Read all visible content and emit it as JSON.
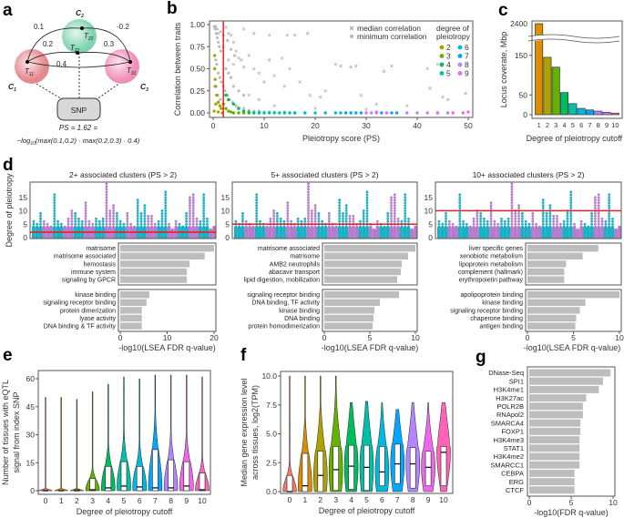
{
  "panels": {
    "a": "a",
    "b": "b",
    "c": "c",
    "d": "d",
    "e": "e",
    "f": "f",
    "g": "g"
  },
  "diagram_a": {
    "clusters": [
      {
        "label": "C",
        "sub": "1",
        "color": "#e48a8f"
      },
      {
        "label": "C",
        "sub": "2",
        "color": "#7fd3b0"
      },
      {
        "label": "C",
        "sub": "3",
        "color": "#f08fb8"
      }
    ],
    "traits": [
      {
        "label": "T",
        "sub": "11"
      },
      {
        "label": "T",
        "sub": "21"
      },
      {
        "label": "T",
        "sub": "22"
      },
      {
        "label": "T",
        "sub": "31"
      }
    ],
    "correlations": [
      "0.1",
      "-0.2",
      "0.2",
      "0.3",
      "0.4"
    ],
    "snp_label": "SNP",
    "ps_line1": "PS = 1.62 =",
    "ps_line2_prefix": "−log",
    "ps_line2_sub": "10",
    "ps_line2_rest": "(max(0.1,0.2) · max(0.2,0.3) · 0.4)"
  },
  "chart_data": [
    {
      "id": "b",
      "type": "scatter",
      "xlabel": "Pleiotropy score (PS)",
      "ylabel": "Correlation between traits",
      "xlim": [
        0,
        50
      ],
      "ylim": [
        0,
        1
      ],
      "xticks": [
        0,
        10,
        20,
        30,
        40,
        50
      ],
      "yticks": [
        "0.00",
        "0.25",
        "0.50",
        "0.75",
        "1.00"
      ],
      "threshold_x": 2,
      "threshold_color": "#e8202a",
      "legend": {
        "placement": "top-right",
        "median_label": "median correlation",
        "minimum_label": "minimum correlation",
        "degree_title_1": "degree of",
        "degree_title_2": "pleiotropy"
      },
      "median_points": [
        [
          0.5,
          0.98
        ],
        [
          0.8,
          0.95
        ],
        [
          1,
          0.9
        ],
        [
          1.5,
          0.92
        ],
        [
          2.5,
          0.97
        ],
        [
          3,
          0.9
        ],
        [
          3.5,
          0.88
        ],
        [
          4,
          0.8
        ],
        [
          4.5,
          0.7
        ],
        [
          5,
          0.62
        ],
        [
          5.5,
          0.6
        ],
        [
          6,
          0.52
        ],
        [
          7,
          0.65
        ],
        [
          8,
          0.5
        ],
        [
          9,
          0.45
        ],
        [
          10,
          0.35
        ],
        [
          11,
          0.6
        ],
        [
          12,
          0.42
        ],
        [
          13.5,
          0.62
        ],
        [
          14,
          0.3
        ],
        [
          15,
          0.5
        ],
        [
          16,
          0.88
        ],
        [
          17,
          0.35
        ],
        [
          18.5,
          0.9
        ],
        [
          19,
          0.2
        ],
        [
          21,
          0.18
        ],
        [
          22,
          0.25
        ],
        [
          24,
          0.55
        ],
        [
          25,
          0.53
        ],
        [
          27,
          0.52
        ],
        [
          28,
          0.53
        ],
        [
          29,
          0.2
        ],
        [
          32,
          0.1
        ],
        [
          33.5,
          0.47
        ],
        [
          35,
          0.53
        ],
        [
          38,
          0.08
        ],
        [
          42,
          0.5
        ],
        [
          42.5,
          0.28
        ],
        [
          44,
          0.55
        ],
        [
          45,
          0.18
        ],
        [
          46,
          0.15
        ],
        [
          49.5,
          0.22
        ],
        [
          14.5,
          0.88
        ],
        [
          11,
          0.88
        ],
        [
          8,
          0.9
        ],
        [
          6,
          0.95
        ],
        [
          3,
          0.6
        ],
        [
          2,
          0.75
        ],
        [
          4,
          0.55
        ],
        [
          7,
          0.2
        ],
        [
          9,
          0.15
        ],
        [
          12,
          0.08
        ],
        [
          20,
          0.05
        ],
        [
          30,
          0.04
        ]
      ],
      "minimum_points": [
        [
          0.2,
          0.98
        ],
        [
          0.4,
          0.95
        ],
        [
          0.6,
          0.9
        ],
        [
          0.8,
          0.85
        ],
        [
          1,
          0.8
        ],
        [
          1.2,
          0.75
        ],
        [
          1.5,
          0.7
        ],
        [
          0.5,
          0.6
        ],
        [
          0.7,
          0.55
        ],
        [
          1,
          0.45
        ],
        [
          1.3,
          0.4
        ],
        [
          1.6,
          0.35
        ],
        [
          2,
          0.3
        ],
        [
          2.3,
          0.25
        ],
        [
          2.8,
          0.2
        ],
        [
          3.2,
          0.15
        ],
        [
          3.8,
          0.12
        ],
        [
          4.5,
          0.08
        ],
        [
          5,
          0.06
        ],
        [
          6,
          0.05
        ],
        [
          7,
          0.03
        ],
        [
          8,
          0.02
        ],
        [
          9,
          0.02
        ],
        [
          10,
          0.01
        ],
        [
          11,
          0.01
        ],
        [
          12,
          0.01
        ],
        [
          14,
          0.01
        ],
        [
          16,
          0
        ],
        [
          18,
          0
        ],
        [
          20,
          0
        ],
        [
          0.3,
          0.3
        ],
        [
          0.9,
          0.2
        ],
        [
          1.4,
          0.15
        ],
        [
          2.5,
          0.5
        ],
        [
          3,
          0.45
        ],
        [
          3.5,
          0.4
        ],
        [
          4,
          0.3
        ],
        [
          5,
          0.25
        ],
        [
          6,
          0.2
        ],
        [
          2,
          0.88
        ],
        [
          2.8,
          0.82
        ],
        [
          3.5,
          0.72
        ],
        [
          4.2,
          0.65
        ]
      ],
      "series": [
        {
          "name": "2",
          "color": "#aea200",
          "points": [
            [
              0.3,
              0.65
            ],
            [
              0.3,
              0.5
            ],
            [
              0.4,
              0.38
            ],
            [
              0.5,
              0.3
            ],
            [
              0.7,
              0.2
            ],
            [
              1,
              0.12
            ],
            [
              1.3,
              0.08
            ],
            [
              1.6,
              0.05
            ],
            [
              0.5,
              0.1
            ],
            [
              0.2,
              0.02
            ],
            [
              1,
              0.01
            ],
            [
              1.8,
              0
            ]
          ]
        },
        {
          "name": "3",
          "color": "#64b200",
          "points": [
            [
              2,
              0.1
            ],
            [
              2.5,
              0.05
            ],
            [
              3,
              0.02
            ],
            [
              3.5,
              0.01
            ],
            [
              4,
              0
            ],
            [
              5,
              0
            ],
            [
              6,
              0
            ],
            [
              7,
              0.01
            ]
          ]
        },
        {
          "name": "4",
          "color": "#00bd5c",
          "points": [
            [
              2.5,
              0.2
            ],
            [
              3,
              0.15
            ],
            [
              4,
              0.1
            ],
            [
              5,
              0.05
            ],
            [
              6,
              0.02
            ],
            [
              7,
              0
            ],
            [
              8,
              0
            ],
            [
              9,
              0
            ]
          ]
        },
        {
          "name": "5",
          "color": "#00c1a7",
          "points": [
            [
              9,
              0
            ],
            [
              10,
              0
            ],
            [
              11,
              0
            ],
            [
              12,
              0
            ],
            [
              13,
              0
            ],
            [
              14,
              0
            ],
            [
              15,
              0
            ],
            [
              16,
              0
            ]
          ]
        },
        {
          "name": "6",
          "color": "#00bade",
          "points": [
            [
              16,
              0
            ],
            [
              18,
              0
            ],
            [
              20,
              0
            ],
            [
              22,
              0
            ],
            [
              24,
              0
            ],
            [
              25,
              0
            ]
          ]
        },
        {
          "name": "7",
          "color": "#00a6ff",
          "points": [
            [
              26,
              0
            ],
            [
              27,
              0
            ],
            [
              28,
              0
            ],
            [
              29,
              0
            ],
            [
              33,
              0
            ],
            [
              35,
              0
            ],
            [
              36,
              0
            ]
          ]
        },
        {
          "name": "8",
          "color": "#b385ff",
          "points": [
            [
              31,
              0
            ],
            [
              32,
              0
            ],
            [
              38,
              0
            ],
            [
              40,
              0
            ],
            [
              42,
              0
            ],
            [
              44,
              0
            ],
            [
              46,
              0
            ]
          ]
        },
        {
          "name": "9",
          "color": "#ef67eb",
          "points": [
            [
              30,
              0
            ],
            [
              32,
              0.01
            ],
            [
              34,
              0
            ],
            [
              44,
              0
            ],
            [
              47,
              0
            ],
            [
              49,
              0
            ],
            [
              50,
              0.01
            ]
          ]
        }
      ]
    },
    {
      "id": "c",
      "type": "bar",
      "xlabel": "Degree of pleiotropy cutoff",
      "ylabel": "Locus coverate, Mbp",
      "axis_break": true,
      "categories": [
        "1",
        "2",
        "3",
        "4",
        "5",
        "6",
        "7",
        "8",
        "9",
        "10"
      ],
      "values": [
        2400,
        145,
        120,
        56,
        28,
        16,
        12,
        9,
        6,
        4
      ],
      "yticks": [
        0,
        50,
        150
      ],
      "break_tick": 2400,
      "colors": [
        "#db8e00",
        "#aea200",
        "#64b200",
        "#00bd5c",
        "#00c1a7",
        "#00bade",
        "#00a6ff",
        "#b385ff",
        "#ef67eb",
        "#ff63b6"
      ]
    },
    {
      "id": "d",
      "type": "bar",
      "ylabel": "Degree of pleiotropy",
      "xlabel": "-log10(LSEA FDR q-value)",
      "yticks": [
        0,
        5,
        10,
        15
      ],
      "manhattan_columns": [
        6,
        5,
        9,
        6,
        5,
        4,
        16,
        6,
        5,
        4,
        7,
        10,
        9,
        7,
        6,
        13,
        6,
        5,
        7,
        6,
        7,
        20,
        10,
        12,
        9,
        6,
        5,
        9,
        5,
        4,
        14,
        9,
        12,
        8,
        8,
        5,
        6,
        10,
        17,
        5,
        3,
        6,
        5,
        4,
        9,
        15,
        16,
        7,
        6,
        16,
        7,
        3,
        4
      ],
      "manhattan_colors": [
        "#1aafc4",
        "#b57cc9"
      ],
      "subpanels": [
        {
          "title": "2+ associated clusters (PS > 2)",
          "cutoff": 2,
          "xlim": [
            0,
            20
          ],
          "xticks": [
            0,
            10,
            20
          ],
          "top_terms": [
            "matrisome",
            "matrisome associated",
            "hemostasis",
            "immune system",
            "signaling by GPCR"
          ],
          "top_values": [
            20,
            18,
            14.8,
            14.2,
            14.2
          ],
          "bottom_terms": [
            "kinase binding",
            "signaling receptor binding",
            "protein dimerization",
            "lyase activity",
            "DNA binding & TF activity"
          ],
          "bottom_values": [
            6.2,
            5.6,
            4.6,
            4.6,
            4.6
          ]
        },
        {
          "title": "5+ associated clusters (PS > 2)",
          "cutoff": 5,
          "xlim": [
            0,
            10
          ],
          "xticks": [
            0,
            5,
            10
          ],
          "top_terms": [
            "matrisome associated",
            "matrisome",
            "AMB2 neutrophils",
            "abacavir transport",
            "lipid digestion, mobilization"
          ],
          "top_values": [
            10,
            9.2,
            8.5,
            8.4,
            8.0
          ],
          "bottom_terms": [
            "signaling receptor binding",
            "DNA binding, TF activity",
            "kinase binding",
            "DNA binding",
            "protein homodimerization"
          ],
          "bottom_values": [
            8.2,
            6.1,
            5.5,
            5.4,
            5.3
          ]
        },
        {
          "title": "10+ associated clusters (PS > 2)",
          "cutoff": 10,
          "xlim": [
            0,
            10
          ],
          "xticks": [
            0,
            5,
            10
          ],
          "top_terms": [
            "liver specific genes",
            "xenobiotic metabolism",
            "lipoprotein metabolism",
            "complement (hallmark)",
            "erythropoietin pathway"
          ],
          "top_values": [
            7.7,
            6.0,
            4.2,
            4.0,
            4.0
          ],
          "bottom_terms": [
            "apolipoprotein binding",
            "kinase binding",
            "signaling receptor binding",
            "chaperone binding",
            "antigen binding"
          ],
          "bottom_values": [
            10,
            6.3,
            5.7,
            5.3,
            5.2
          ]
        }
      ]
    },
    {
      "id": "e",
      "type": "violin",
      "xlabel": "Degree of pleiotropy cutoff",
      "ylabel_1": "Number of tissues with eQTL",
      "ylabel_2": "signal from index SNP",
      "categories": [
        "0",
        "1",
        "2",
        "3",
        "4",
        "5",
        "6",
        "7",
        "8",
        "9",
        "10"
      ],
      "ylim": [
        0,
        62
      ],
      "yticks": [
        0,
        15,
        30,
        45,
        60
      ],
      "max": [
        50,
        50,
        49,
        53,
        57,
        61,
        60,
        62,
        62,
        62,
        61
      ],
      "q1": [
        0,
        0,
        0,
        0,
        0,
        0,
        0,
        0,
        0,
        0,
        0
      ],
      "median": [
        0,
        0,
        0,
        0.5,
        1.5,
        2.5,
        2,
        1.5,
        1.5,
        2.5,
        0.5
      ],
      "q3": [
        0,
        0,
        0.5,
        6.5,
        13,
        15.5,
        13,
        22,
        16.5,
        15.5,
        9.5
      ],
      "colors": [
        "#f8766d",
        "#db8e00",
        "#aea200",
        "#64b200",
        "#00bd5c",
        "#00c1a7",
        "#00bade",
        "#00a6ff",
        "#b385ff",
        "#ef67eb",
        "#ff63b6"
      ]
    },
    {
      "id": "f",
      "type": "violin",
      "xlabel": "Degree of pleiotropy cutoff",
      "ylabel_1": "Median gene expression level",
      "ylabel_2": "across tissues, log2(TPM)",
      "categories": [
        "0",
        "1",
        "2",
        "3",
        "4",
        "5",
        "6",
        "7",
        "8",
        "9",
        "10"
      ],
      "ylim": [
        0,
        10
      ],
      "yticks": [
        "0.0",
        "2.5",
        "5.0",
        "7.5",
        "10.0"
      ],
      "max": [
        10,
        10,
        10,
        10,
        7.7,
        7.8,
        7.7,
        7.1,
        7.7,
        7.7,
        7.7
      ],
      "q1": [
        0,
        0,
        0,
        0.1,
        0.2,
        0.1,
        0.5,
        0.7,
        0.3,
        0.5,
        0.5
      ],
      "median": [
        0,
        0.5,
        1.4,
        1.9,
        2.2,
        2.1,
        1.7,
        2.4,
        2.4,
        2.1,
        3.4
      ],
      "q3": [
        1.4,
        3.3,
        3.5,
        3.9,
        4.0,
        4.0,
        3.9,
        4.1,
        3.8,
        3.5,
        3.9
      ],
      "colors": [
        "#f8766d",
        "#db8e00",
        "#aea200",
        "#64b200",
        "#00bd5c",
        "#00c1a7",
        "#00bade",
        "#00a6ff",
        "#b385ff",
        "#ef67eb",
        "#ff63b6"
      ]
    },
    {
      "id": "g",
      "type": "bar",
      "orientation": "horizontal",
      "xlabel": "-log10(FDR q-value)",
      "xlim": [
        0,
        10
      ],
      "xticks": [
        0,
        5,
        10
      ],
      "categories": [
        "DNase-Seq",
        "SPI1",
        "H3K4me1",
        "H3K27ac",
        "POLR2B",
        "RNApol2",
        "SMARCA4",
        "FOXP1",
        "H3K4me3",
        "STAT1",
        "H3K4me2",
        "SMARCC1",
        "CEBPA",
        "ERG",
        "CTCF"
      ],
      "values": [
        9.7,
        8.8,
        8.3,
        6.8,
        6.4,
        6.4,
        6.1,
        6.1,
        6.0,
        6.0,
        6.0,
        6.0,
        5.4,
        5.4,
        5.4
      ],
      "color": "#bdbdbd"
    }
  ]
}
